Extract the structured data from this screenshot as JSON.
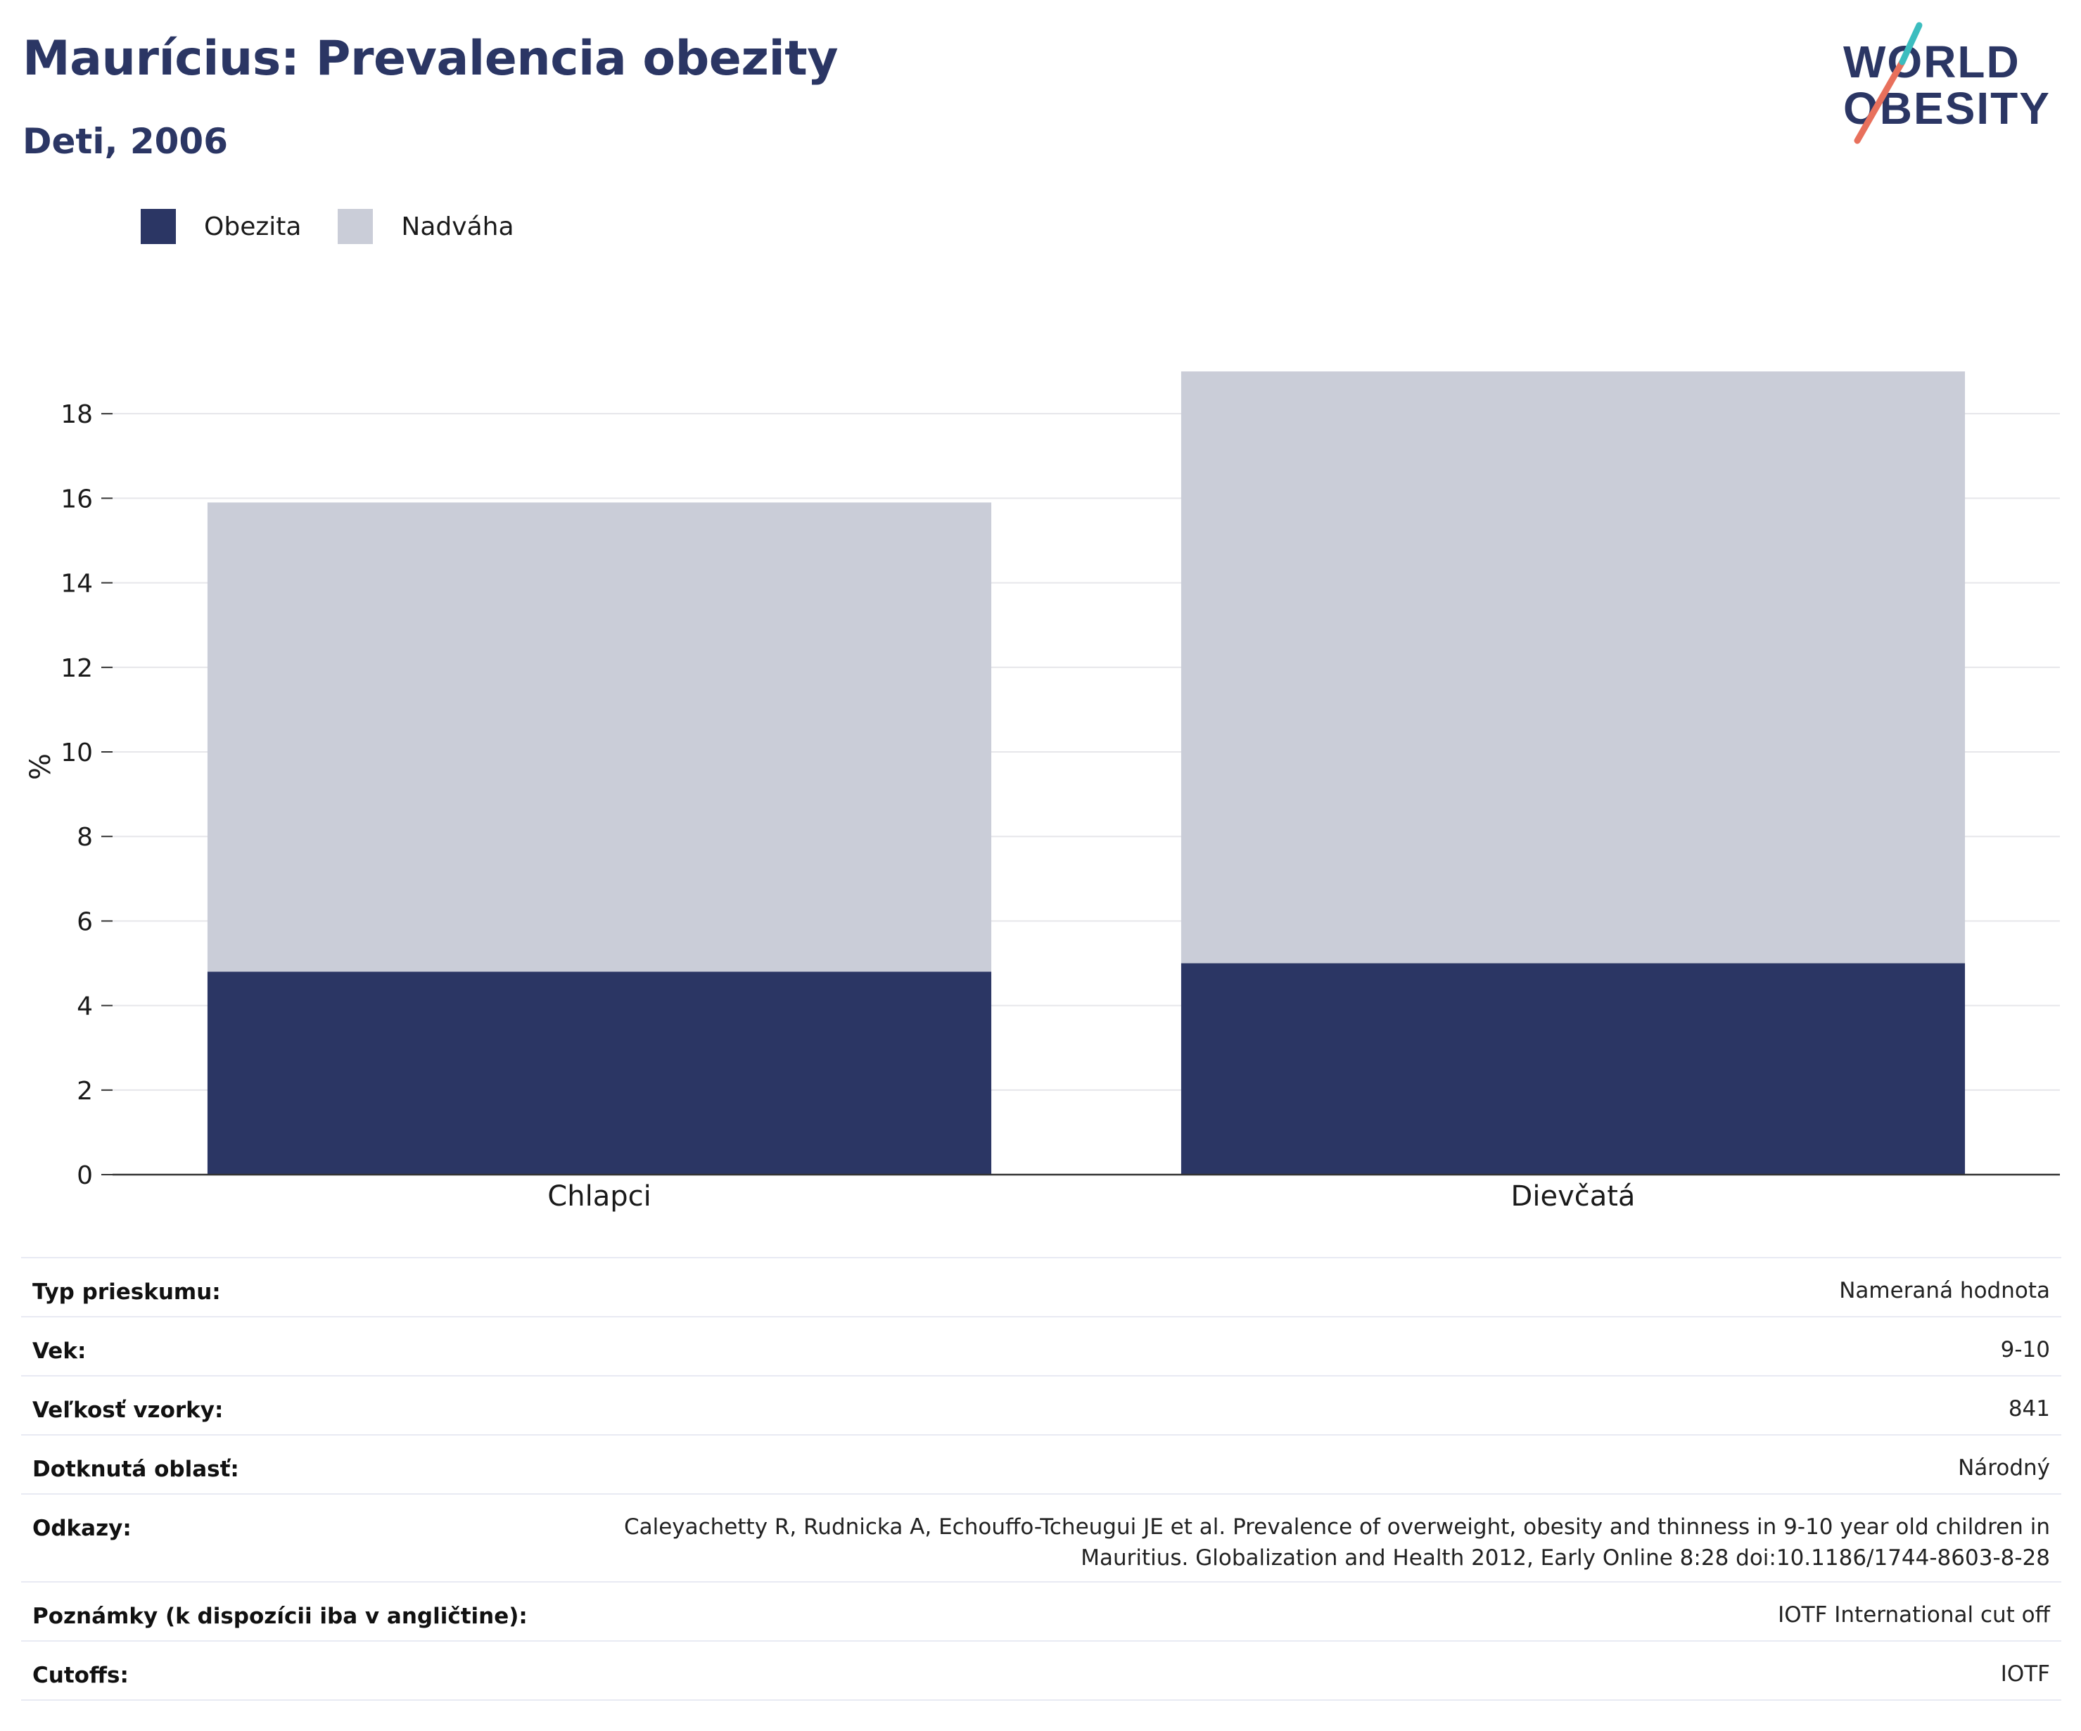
{
  "header": {
    "title": "Maurícius: Prevalencia obezity",
    "subtitle": "Deti, 2006"
  },
  "logo": {
    "line1": "WORLD",
    "line2": "OBESITY"
  },
  "legend": [
    {
      "label": "Obezita",
      "color": "#2b3664"
    },
    {
      "label": "Nadváha",
      "color": "#cacdd8"
    }
  ],
  "chart_data": {
    "type": "bar",
    "stacked": true,
    "categories": [
      "Chlapci",
      "Dievčatá"
    ],
    "series": [
      {
        "name": "Obezita",
        "color": "#2b3664",
        "values": [
          4.8,
          5.0
        ]
      },
      {
        "name": "Nadváha",
        "color": "#cacdd8",
        "values": [
          11.1,
          14.0
        ]
      }
    ],
    "ylabel": "%",
    "ylim": [
      0,
      19.8
    ],
    "yticks": [
      0,
      2,
      4,
      6,
      8,
      10,
      12,
      14,
      16,
      18
    ],
    "grid": true,
    "legend_position": "top-left"
  },
  "info_table": [
    {
      "label": "Typ prieskumu:",
      "value": "Nameraná hodnota"
    },
    {
      "label": "Vek:",
      "value": "9-10"
    },
    {
      "label": "Veľkosť vzorky:",
      "value": "841"
    },
    {
      "label": "Dotknutá oblasť:",
      "value": "Národný"
    },
    {
      "label": "Odkazy:",
      "value": "Caleyachetty R, Rudnicka A, Echouffo-Tcheugui JE et al. Prevalence of overweight, obesity and thinness in 9-10 year old children in Mauritius. Globalization and Health 2012, Early Online 8:28 doi:10.1186/1744-8603-8-28"
    },
    {
      "label": "Poznámky (k dispozícii iba v angličtine):",
      "value": "IOTF International cut off"
    },
    {
      "label": "Cutoffs:",
      "value": "IOTF"
    }
  ]
}
